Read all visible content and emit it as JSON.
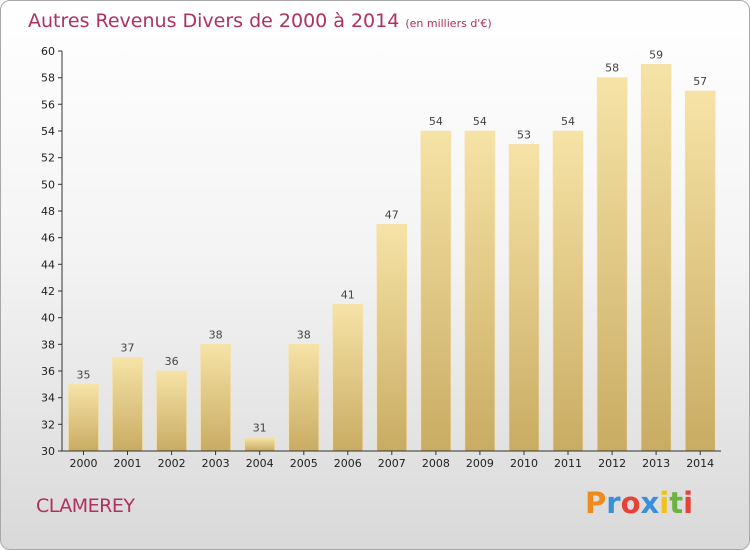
{
  "header": {
    "title": "Autres Revenus Divers de 2000 à 2014",
    "subtitle": "(en milliers d'€)"
  },
  "footer": {
    "commune": "CLAMEREY",
    "logo_text": "Proxiti",
    "logo_colors": [
      "#f08a1c",
      "#3b8fd9",
      "#e8413a",
      "#3b8fd9",
      "#f2c21a",
      "#6cb33f",
      "#e8413a"
    ]
  },
  "colors": {
    "bar_light": "#f6e3a6",
    "bar_dark": "#c9ac63",
    "text_accent": "#b03060",
    "axis": "#333333"
  },
  "chart_data": {
    "type": "bar",
    "title": "Autres Revenus Divers de 2000 à 2014",
    "subtitle": "(en milliers d'€)",
    "xlabel": "",
    "ylabel": "",
    "categories": [
      "2000",
      "2001",
      "2002",
      "2003",
      "2004",
      "2005",
      "2006",
      "2007",
      "2008",
      "2009",
      "2010",
      "2011",
      "2012",
      "2013",
      "2014"
    ],
    "values": [
      35,
      37,
      36,
      38,
      31,
      38,
      41,
      47,
      54,
      54,
      53,
      54,
      58,
      59,
      57
    ],
    "ylim": [
      30,
      60
    ],
    "yticks": [
      30,
      32,
      34,
      36,
      38,
      40,
      42,
      44,
      46,
      48,
      50,
      52,
      54,
      56,
      58,
      60
    ],
    "grid": false,
    "data_labels": true
  }
}
